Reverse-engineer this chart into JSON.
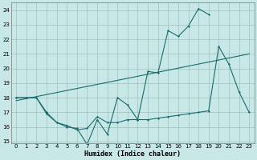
{
  "xlabel": "Humidex (Indice chaleur)",
  "x_values": [
    0,
    1,
    2,
    3,
    4,
    5,
    6,
    7,
    8,
    9,
    10,
    11,
    12,
    13,
    14,
    15,
    16,
    17,
    18,
    19,
    20,
    21,
    22,
    23
  ],
  "line1_y": [
    18.0,
    18.0,
    18.0,
    16.9,
    16.3,
    16.0,
    15.9,
    14.8,
    16.5,
    15.5,
    18.0,
    17.5,
    16.5,
    19.8,
    19.7,
    22.6,
    22.2,
    22.9,
    24.1,
    23.7,
    null,
    null,
    null,
    null
  ],
  "line2_y": [
    18.0,
    18.0,
    18.0,
    17.0,
    16.3,
    16.1,
    15.8,
    15.9,
    16.7,
    16.3,
    16.3,
    16.5,
    16.5,
    16.5,
    16.6,
    16.7,
    16.8,
    16.9,
    17.0,
    17.1,
    21.5,
    20.3,
    18.4,
    17.0
  ],
  "trend_x": [
    0,
    23
  ],
  "trend_y": [
    17.8,
    21.0
  ],
  "bg_color": "#c8e8e8",
  "grid_color": "#a0c0c0",
  "line_color": "#1a6b6b",
  "ylim": [
    14.9,
    24.5
  ],
  "xlim": [
    -0.5,
    23.5
  ],
  "yticks": [
    15,
    16,
    17,
    18,
    19,
    20,
    21,
    22,
    23,
    24
  ],
  "xticks": [
    0,
    1,
    2,
    3,
    4,
    5,
    6,
    7,
    8,
    9,
    10,
    11,
    12,
    13,
    14,
    15,
    16,
    17,
    18,
    19,
    20,
    21,
    22,
    23
  ],
  "tick_fontsize": 5,
  "xlabel_fontsize": 6
}
